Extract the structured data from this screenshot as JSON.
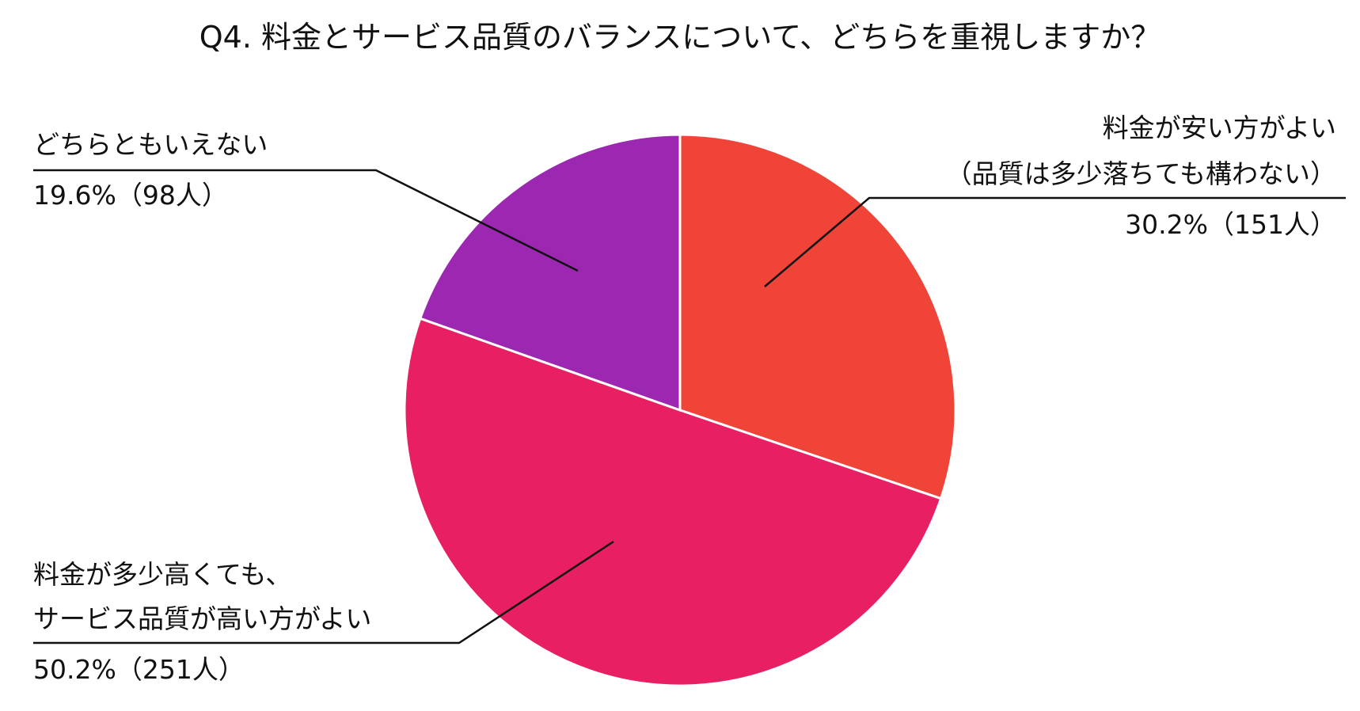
{
  "chart_data": {
    "type": "pie",
    "title": "Q4. 料金とサービス品質のバランスについて、どちらを重視しますか？",
    "start": "top",
    "direction": "clockwise",
    "slices": [
      {
        "label_lines": [
          "料金が安い方がよい",
          "（品質は多少落ちても構わない）"
        ],
        "value": 30.2,
        "count": 151,
        "value_text": "30.2%（151人）",
        "color": "#f04438"
      },
      {
        "label_lines": [
          "料金が多少高くても、",
          "サービス品質が高い方がよい"
        ],
        "value": 50.2,
        "count": 251,
        "value_text": "50.2%（251人）",
        "color": "#e81f63"
      },
      {
        "label_lines": [
          "どちらともいえない"
        ],
        "value": 19.6,
        "count": 98,
        "value_text": "19.6%（98人）",
        "color": "#9c27b0"
      }
    ]
  }
}
